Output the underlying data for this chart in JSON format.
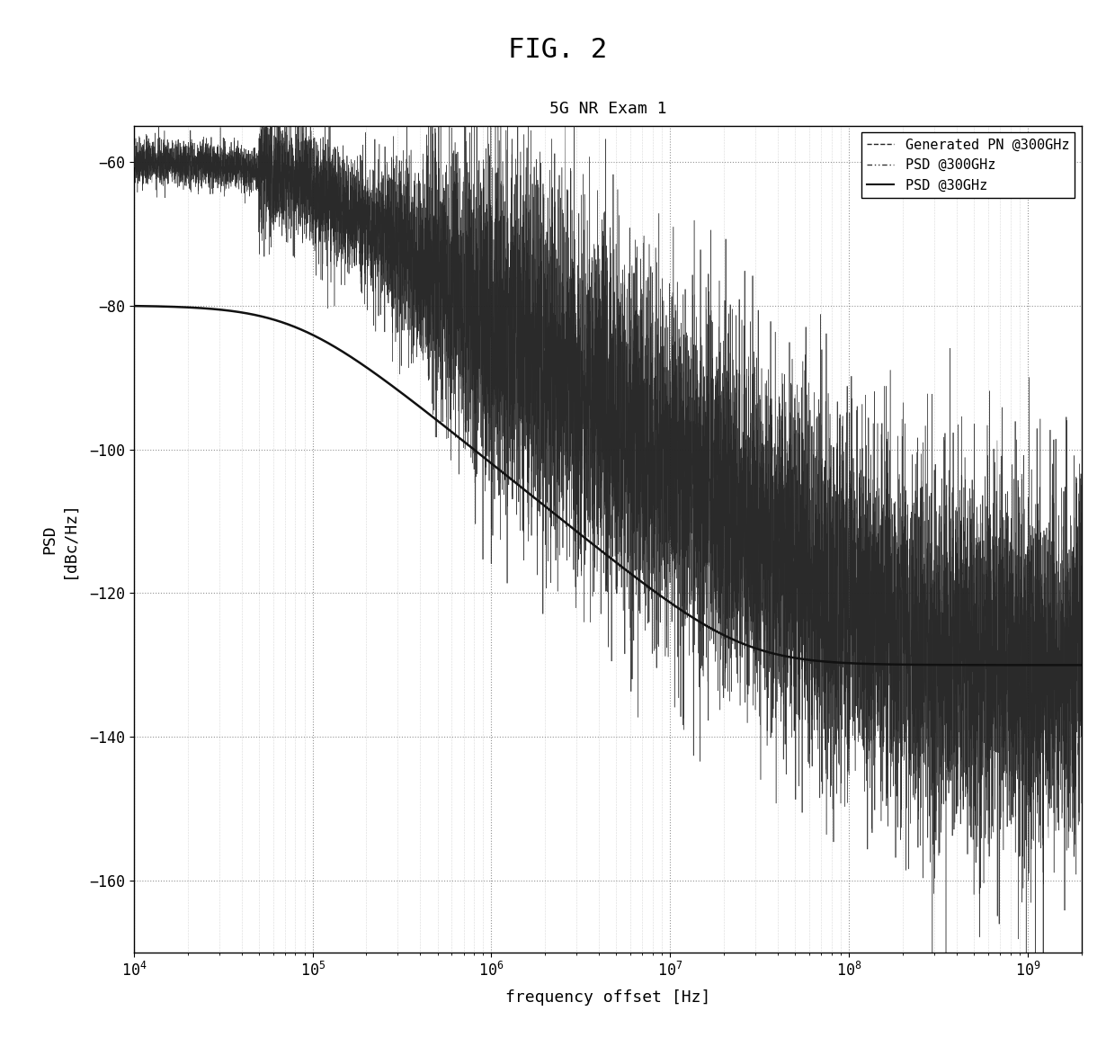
{
  "title_fig": "FIG. 2",
  "title_plot": "5G NR Exam 1",
  "xlabel": "frequency offset [Hz]",
  "ylabel": "PSD\n[dBc/Hz]",
  "ylim": [
    -170,
    -55
  ],
  "yticks": [
    -160,
    -140,
    -120,
    -100,
    -80,
    -60
  ],
  "xmin": 10000.0,
  "xmax": 2000000000.0,
  "legend_labels": [
    "Generated PN @300GHz",
    "PSD @300GHz",
    "PSD @30GHz"
  ],
  "background_color": "#ffffff",
  "line_color": "#000000",
  "grid_color": "#888888",
  "fig_title_fontsize": 22,
  "plot_title_fontsize": 13,
  "axis_label_fontsize": 13,
  "tick_fontsize": 12,
  "legend_fontsize": 11
}
